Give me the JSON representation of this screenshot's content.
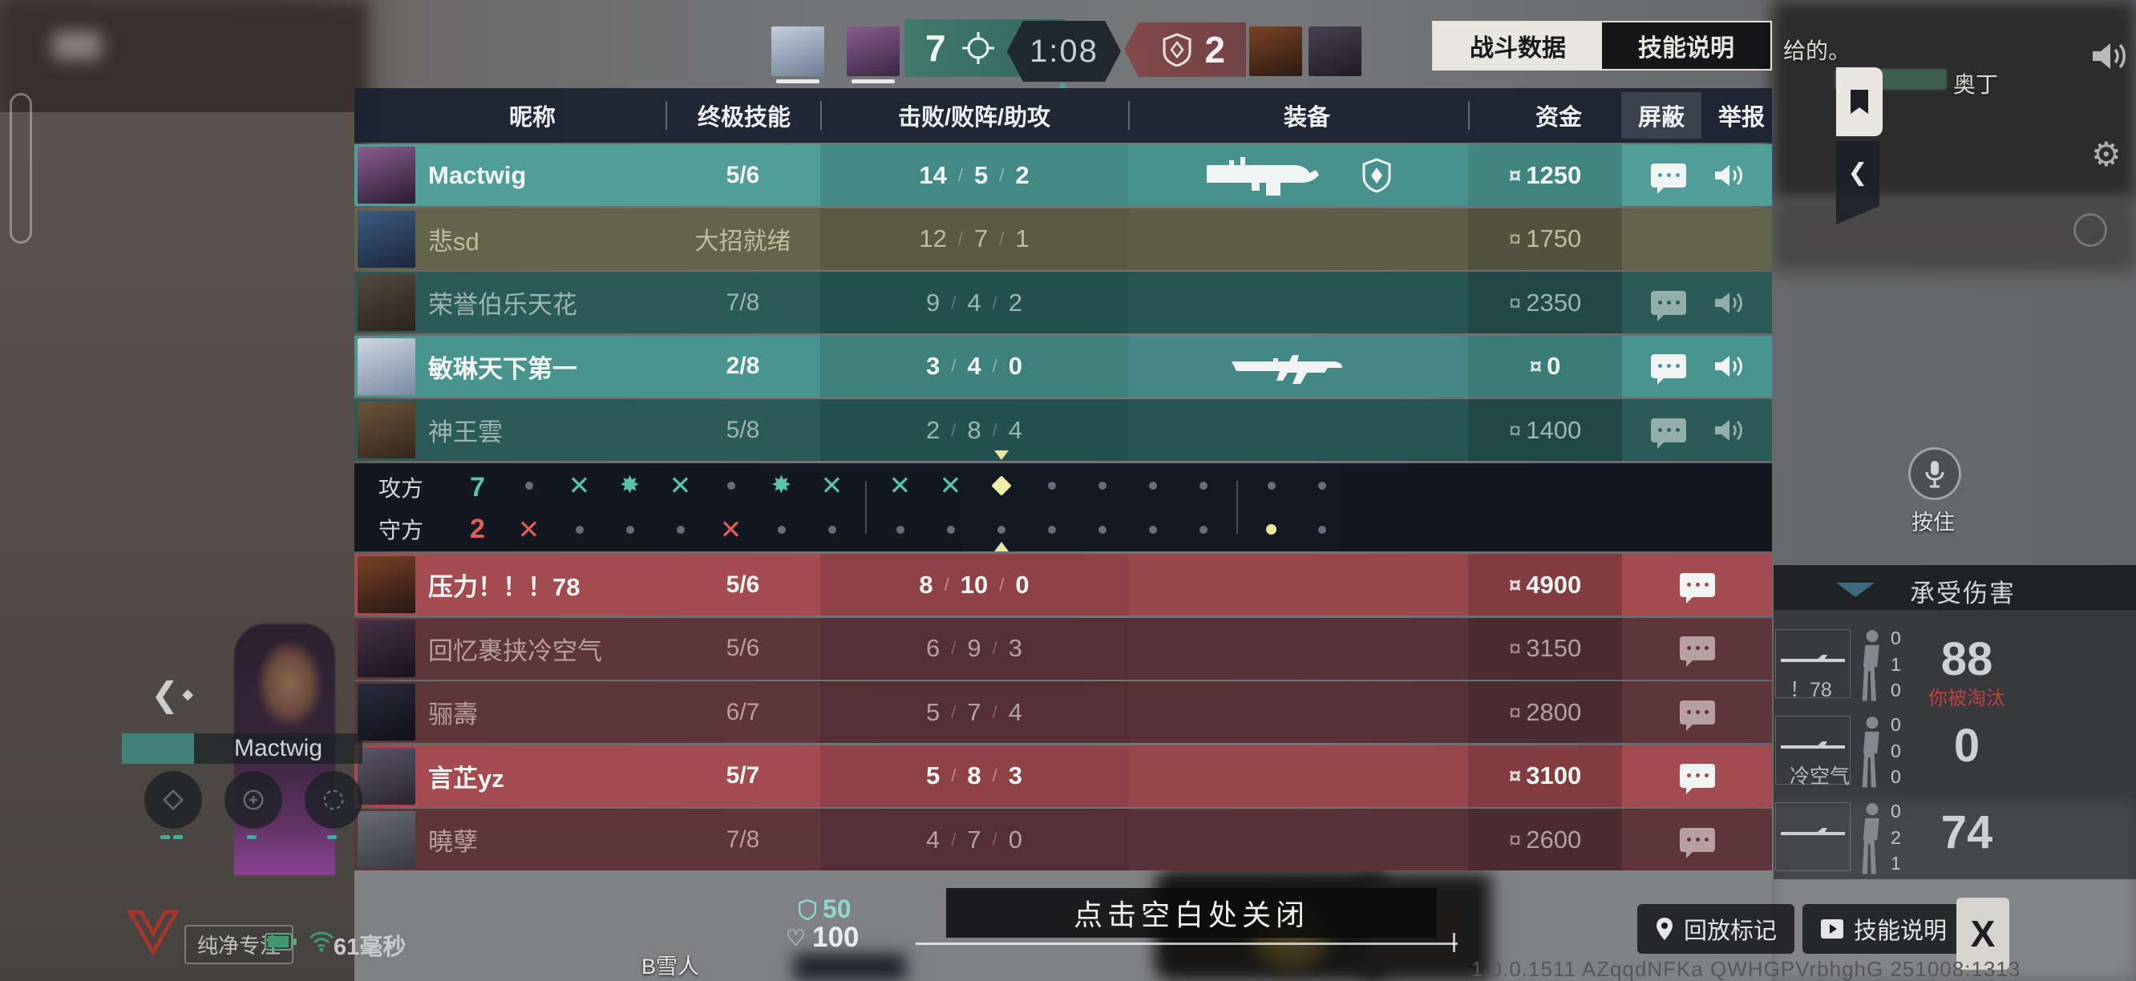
{
  "app": {
    "close_hint": "点击空白处关闭",
    "version_watermark": "1.0.0.1511 AZqqdNFKa QWHGPVrbhghG 251008:1313",
    "map_label": "B雪人"
  },
  "top_bar": {
    "left_score": "7",
    "right_score": "2",
    "timer": "1:08",
    "tabs": [
      {
        "label": "战斗数据",
        "active": true
      },
      {
        "label": "技能说明",
        "active": false
      }
    ],
    "chat_lines": [
      {
        "text": "给的。"
      },
      {
        "text": "奥丁"
      }
    ]
  },
  "scoreboard": {
    "headers": {
      "name": "昵称",
      "ult": "终极技能",
      "kda": "击败/败阵/助攻",
      "equip": "装备",
      "money": "资金",
      "block": "屏蔽",
      "report": "举报"
    },
    "ally_team": [
      {
        "name": "Mactwig",
        "ult": "5/6",
        "kills": "14",
        "deaths": "5",
        "assists": "2",
        "money": "1250",
        "state": "hl",
        "weapon": "lmg",
        "shield": true,
        "icons": "bright",
        "avatar": [
          "#8a5d8e",
          "#2a1b33"
        ]
      },
      {
        "name": "悲sd",
        "ult": "大招就绪",
        "kills": "12",
        "deaths": "7",
        "assists": "1",
        "money": "1750",
        "state": "self",
        "weapon": "",
        "shield": false,
        "icons": "none",
        "avatar": [
          "#4a7fc0",
          "#22365c"
        ]
      },
      {
        "name": "荣誉伯乐天花",
        "ult": "7/8",
        "kills": "9",
        "deaths": "4",
        "assists": "2",
        "money": "2350",
        "state": "dead",
        "weapon": "",
        "shield": false,
        "icons": "dim",
        "avatar": [
          "#8d7a60",
          "#4a3a28"
        ]
      },
      {
        "name": "敏琳天下第一",
        "ult": "2/8",
        "kills": "3",
        "deaths": "4",
        "assists": "0",
        "money": "0",
        "state": "alive",
        "weapon": "rifle",
        "shield": false,
        "icons": "bright",
        "avatar": [
          "#cdd6e2",
          "#7a88a0"
        ]
      },
      {
        "name": "神王雲",
        "ult": "5/8",
        "kills": "2",
        "deaths": "8",
        "assists": "4",
        "money": "1400",
        "state": "dead",
        "weapon": "",
        "shield": false,
        "icons": "dim",
        "avatar": [
          "#c08a50",
          "#5c3f24"
        ]
      }
    ],
    "enemy_team": [
      {
        "name": "压力！！！78",
        "ult": "5/6",
        "kills": "8",
        "deaths": "10",
        "assists": "0",
        "money": "4900",
        "state": "alive",
        "weapon": "",
        "shield": false,
        "icons": "bright",
        "avatar": [
          "#7a4226",
          "#241712"
        ]
      },
      {
        "name": "回忆裹挟冷空气",
        "ult": "5/6",
        "kills": "6",
        "deaths": "9",
        "assists": "3",
        "money": "3150",
        "state": "dead",
        "weapon": "",
        "shield": false,
        "icons": "dim",
        "avatar": [
          "#7e5080",
          "#2c1c30"
        ]
      },
      {
        "name": "骊壽",
        "ult": "6/7",
        "kills": "5",
        "deaths": "7",
        "assists": "4",
        "money": "2800",
        "state": "dead",
        "weapon": "",
        "shield": false,
        "icons": "dim",
        "avatar": [
          "#44486e",
          "#181a2e"
        ]
      },
      {
        "name": "言芷yz",
        "ult": "5/7",
        "kills": "5",
        "deaths": "8",
        "assists": "3",
        "money": "3100",
        "state": "alive",
        "weapon": "",
        "shield": false,
        "icons": "bright",
        "avatar": [
          "#5c5668",
          "#2a2630"
        ]
      },
      {
        "name": "曉孽",
        "ult": "7/8",
        "kills": "4",
        "deaths": "7",
        "assists": "0",
        "money": "2600",
        "state": "dead",
        "weapon": "",
        "shield": false,
        "icons": "dim",
        "avatar": [
          "#aeb4c2",
          "#596070"
        ]
      }
    ]
  },
  "rounds": {
    "attack_label": "攻方",
    "attack_score": "7",
    "defend_label": "守方",
    "defend_score": "2",
    "timeline": [
      {
        "top": "dot",
        "bottom": "elim-def"
      },
      {
        "top": "elim-atk",
        "bottom": "dot"
      },
      {
        "top": "spike-atk",
        "bottom": "dot"
      },
      {
        "top": "elim-atk",
        "bottom": "dot"
      },
      {
        "top": "dot",
        "bottom": "elim-def"
      },
      {
        "top": "spike-atk",
        "bottom": "dot"
      },
      {
        "top": "elim-atk",
        "bottom": "dot"
      },
      {
        "sep": true
      },
      {
        "top": "elim-atk",
        "bottom": "dot"
      },
      {
        "top": "elim-atk",
        "bottom": "dot"
      },
      {
        "top": "current",
        "bottom": "dot"
      },
      {
        "top": "dot",
        "bottom": "dot"
      },
      {
        "top": "dot",
        "bottom": "dot"
      },
      {
        "top": "dot",
        "bottom": "dot"
      },
      {
        "top": "dot",
        "bottom": "dot"
      },
      {
        "sep": true
      },
      {
        "top": "dot",
        "bottom": "dot-hl"
      },
      {
        "top": "dot",
        "bottom": "dot"
      }
    ]
  },
  "damage_panel": {
    "title": "承受伤害",
    "entries": [
      {
        "name_fragment": "！78",
        "hits": [
          "0",
          "1",
          "0"
        ],
        "damage": "88",
        "note": "你被淘汰"
      },
      {
        "name_fragment": "冷空气",
        "hits": [
          "0",
          "0",
          "0"
        ],
        "damage": "0",
        "note": ""
      },
      {
        "name_fragment": "",
        "hits": [
          "0",
          "2",
          "1"
        ],
        "damage": "74",
        "note": ""
      }
    ]
  },
  "spectate": {
    "name": "Mactwig"
  },
  "hud": {
    "armor": "50",
    "health": "100",
    "hold_mic_label": "按住",
    "replay_button": "回放标记",
    "skill_button": "技能说明",
    "close_button": "X",
    "purity_badge": "纯净专注",
    "ping": "61毫秒"
  },
  "colors": {
    "ally_bright": "#4a9490",
    "ally_dead": "#2c5a59",
    "self_row": "#64644a",
    "enemy_bright": "#a34b4f",
    "enemy_dead": "#5e3539",
    "accent_teal": "#5ac3b0",
    "accent_red": "#e06058",
    "round_current": "#efeea6"
  }
}
